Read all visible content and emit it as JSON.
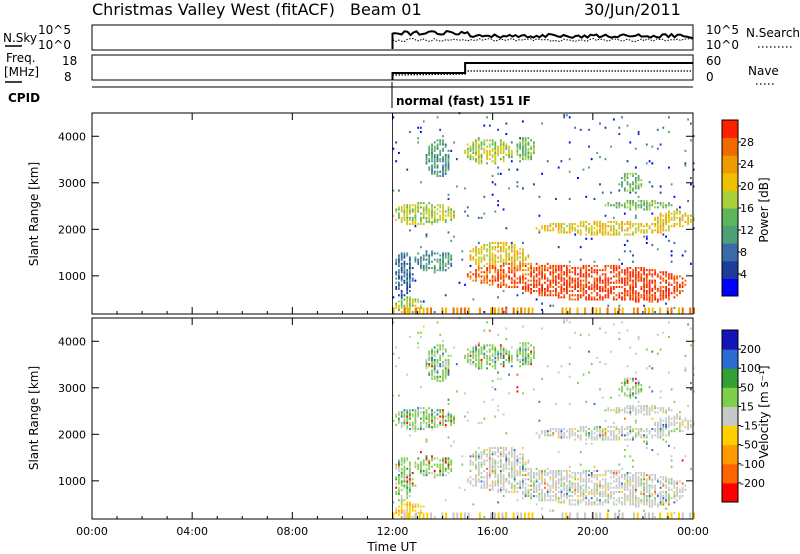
{
  "header": {
    "title": "Christmas Valley West (fitACF)",
    "beam": "Beam 01",
    "date": "30/Jun/2011"
  },
  "top_panels": {
    "nsky_label": "N.Sky",
    "nsky_ticks": [
      "10^5",
      "10^0"
    ],
    "nsearch_label": "N.Search",
    "nsearch_ticks": [
      "10^5",
      "10^0"
    ],
    "freq_label_1": "Freq.",
    "freq_label_2": "[MHz]",
    "freq_ticks": [
      "18",
      "8"
    ],
    "nave_label": "Nave",
    "nave_ticks": [
      "60",
      "0"
    ],
    "cpid_label": "CPID",
    "cpid_text": "normal (fast) 151 IF"
  },
  "colors": {
    "power_bar": [
      "#0000ff",
      "#1e3c9c",
      "#3a6aa8",
      "#4e9f78",
      "#5cb45c",
      "#a8d038",
      "#f0c000",
      "#f09a00",
      "#f06a00",
      "#ff2000"
    ],
    "velocity_bar": [
      "#ff0000",
      "#ff6400",
      "#ff9a00",
      "#ffd000",
      "#c8c8c8",
      "#7ed04a",
      "#32a032",
      "#2a6cd0",
      "#1414b4"
    ]
  },
  "chart_data": [
    {
      "type": "heatmap",
      "name": "power",
      "xlabel": "",
      "ylabel": "Slant Range [km]",
      "x_ticks": [
        "00:00",
        "04:00",
        "08:00",
        "12:00",
        "16:00",
        "20:00",
        "00:00"
      ],
      "y_ticks": [
        "4000",
        "3000",
        "2000",
        "1000"
      ],
      "y_tick_values": [
        4000,
        3000,
        2000,
        1000
      ],
      "ylim": [
        180,
        4500
      ],
      "colorbar_label": "Power [dB]",
      "colorbar_ticks": [
        "28",
        "24",
        "20",
        "16",
        "12",
        "8",
        "4"
      ]
    },
    {
      "type": "heatmap",
      "name": "velocity",
      "xlabel": "Time UT",
      "ylabel": "Slant Range [km]",
      "x_ticks": [
        "00:00",
        "04:00",
        "08:00",
        "12:00",
        "16:00",
        "20:00",
        "00:00"
      ],
      "y_ticks": [
        "4000",
        "3000",
        "2000",
        "1000"
      ],
      "y_tick_values": [
        4000,
        3000,
        2000,
        1000
      ],
      "ylim": [
        180,
        4500
      ],
      "colorbar_label": "Velocity [m s⁻¹]",
      "colorbar_ticks": [
        "200",
        "100",
        "50",
        "15",
        "-15",
        "-50",
        "-100",
        "-200"
      ]
    }
  ]
}
